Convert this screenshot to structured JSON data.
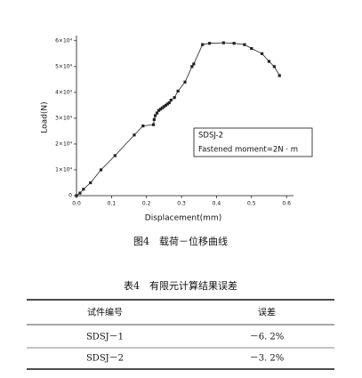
{
  "chart_data": {
    "type": "line",
    "xlabel": "Displacement(mm)",
    "ylabel": "Load(N)",
    "x": [
      0,
      0.01,
      0.02,
      0.04,
      0.07,
      0.11,
      0.165,
      0.19,
      0.22,
      0.222,
      0.225,
      0.23,
      0.235,
      0.24,
      0.245,
      0.25,
      0.255,
      0.26,
      0.265,
      0.27,
      0.28,
      0.29,
      0.31,
      0.33,
      0.335,
      0.36,
      0.38,
      0.42,
      0.45,
      0.48,
      0.5,
      0.53,
      0.55,
      0.565,
      0.58
    ],
    "series": [
      {
        "name": "SDSJ-2",
        "color": "#222222",
        "values": [
          0,
          1000,
          2500,
          5000,
          10000,
          15500,
          23500,
          27000,
          27500,
          29500,
          31000,
          32000,
          33000,
          33500,
          34000,
          34500,
          35000,
          35500,
          36000,
          37000,
          38000,
          40500,
          44000,
          50000,
          51000,
          58500,
          59000,
          59200,
          59000,
          58500,
          57000,
          55000,
          52000,
          50000,
          46500
        ]
      }
    ],
    "annotation": "Fastened moment=2N · m",
    "xlim": [
      0,
      0.62
    ],
    "xticks": [
      {
        "value": 0,
        "label": "0.0"
      },
      0.1,
      0.2,
      0.3,
      0.4,
      0.5,
      0.6
    ],
    "ylim": [
      0,
      62000
    ],
    "yticks": [
      0,
      {
        "value": 10000,
        "label": "1×10⁴"
      },
      {
        "value": 20000,
        "label": "2×10⁴"
      },
      {
        "value": 30000,
        "label": "3×10⁴"
      },
      {
        "value": 40000,
        "label": "4×10⁴"
      },
      {
        "value": 50000,
        "label": "5×10⁴"
      },
      {
        "value": 60000,
        "label": "6×10⁴"
      }
    ],
    "grid": false
  },
  "figure_caption": "图4　载荷－位移曲线",
  "table": {
    "caption": "表4　有限元计算结果误差",
    "header": [
      "试件编号",
      "误差"
    ],
    "rows": [
      [
        "SDSJ－1",
        "－6. 2%"
      ],
      [
        "SDSJ－2",
        "－3. 2%"
      ]
    ]
  }
}
